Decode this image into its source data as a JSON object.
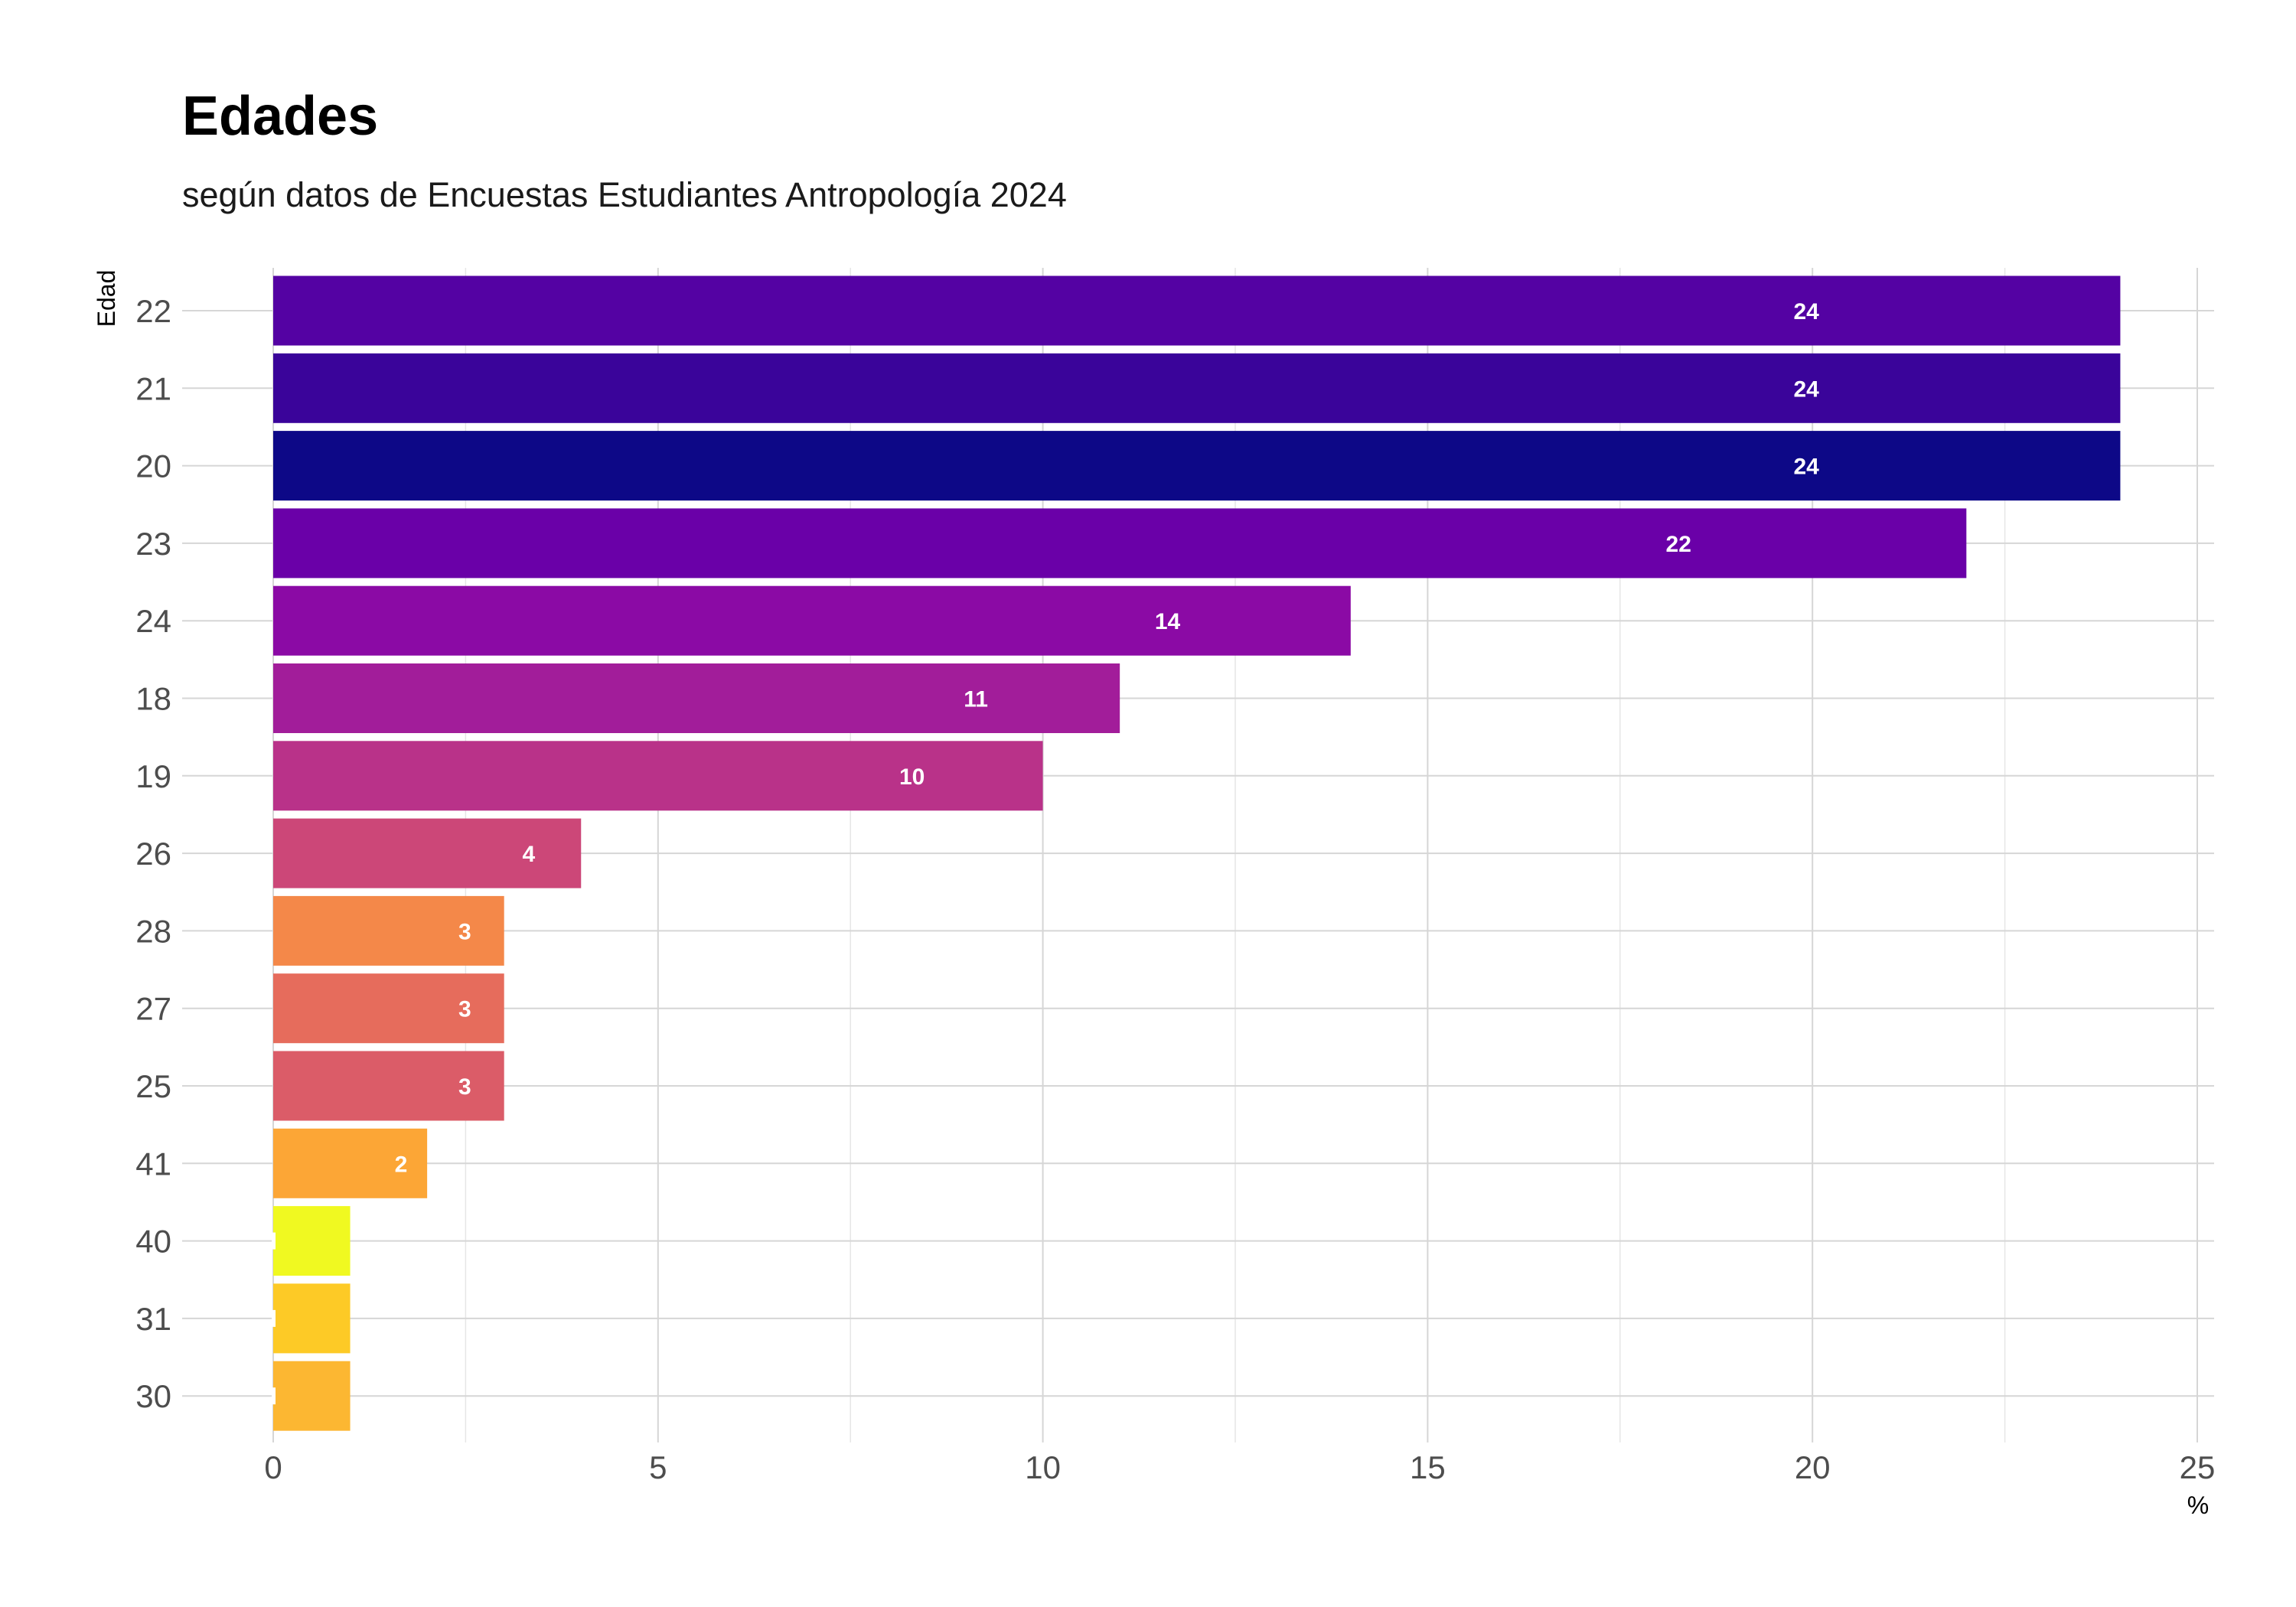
{
  "chart_data": {
    "type": "bar",
    "orientation": "horizontal",
    "title": "Edades",
    "subtitle": "según datos de Encuestas Estudiantes Antropología 2024",
    "xlabel": "%",
    "ylabel": "Edad",
    "xlim": [
      0,
      25
    ],
    "xticks": [
      "0",
      "5",
      "10",
      "15",
      "20",
      "25"
    ],
    "grid": true,
    "legend": "none",
    "categories": [
      "22",
      "21",
      "20",
      "23",
      "24",
      "18",
      "19",
      "26",
      "28",
      "27",
      "25",
      "41",
      "40",
      "31",
      "30"
    ],
    "values": [
      24,
      24,
      24,
      22,
      14,
      11,
      10,
      4,
      3,
      3,
      3,
      2,
      1,
      1,
      1
    ],
    "data_labels": [
      "24",
      "24",
      "24",
      "22",
      "14",
      "11",
      "10",
      "4",
      "3",
      "3",
      "3",
      "2",
      "",
      "",
      ""
    ],
    "colors": [
      "#5402a3",
      "#3a049a",
      "#0d0887",
      "#6a00a8",
      "#8b0aa5",
      "#a21d9a",
      "#b93289",
      "#cc4778",
      "#f48849",
      "#e66c5c",
      "#db5c68",
      "#fca636",
      "#f0f921",
      "#fdca26",
      "#fcb732"
    ]
  }
}
